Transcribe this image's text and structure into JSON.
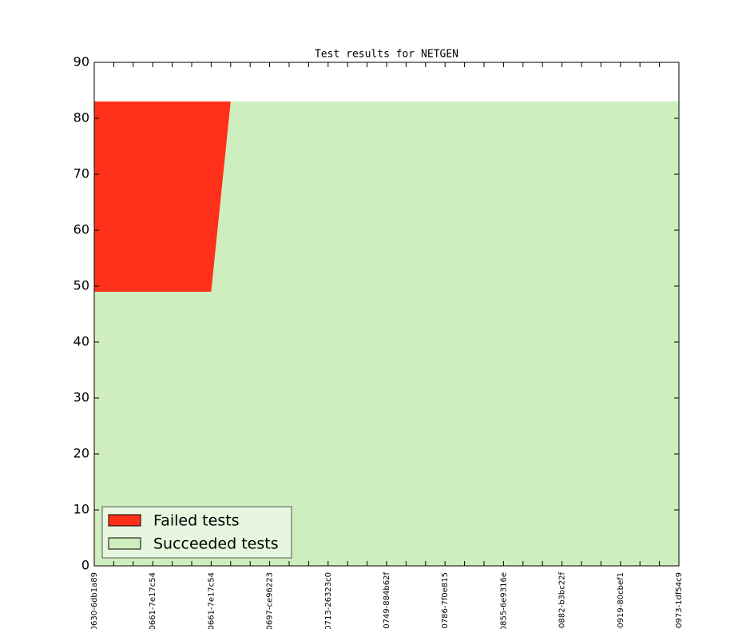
{
  "chart_data": {
    "type": "stacked-area",
    "title": "Test results for NETGEN",
    "categories": [
      "0630-6db1a89",
      null,
      null,
      "0661-7e17c54",
      null,
      null,
      "0661-7e17c54",
      null,
      null,
      "0697-ce96223",
      null,
      null,
      "0713-26323c0",
      null,
      null,
      "0749-884b62f",
      null,
      null,
      "0786-7f0e815",
      null,
      null,
      "0855-6e9316e",
      null,
      null,
      "-0882-b3bc22f",
      null,
      null,
      "-0919-80cbef1",
      null,
      null,
      "-0973-1df54c9"
    ],
    "series": [
      {
        "name": "Failed tests",
        "color": "#ff3019",
        "values": [
          34,
          34,
          34,
          34,
          34,
          34,
          34,
          0,
          0,
          0,
          0,
          0,
          0,
          0,
          0,
          0,
          0,
          0,
          0,
          0,
          0,
          0,
          0,
          0,
          0,
          0,
          0,
          0,
          0,
          0,
          0
        ]
      },
      {
        "name": "Succeeded tests",
        "color": "#cfeebf",
        "values": [
          49,
          49,
          49,
          49,
          49,
          49,
          49,
          83,
          83,
          83,
          83,
          83,
          83,
          83,
          83,
          83,
          83,
          83,
          83,
          83,
          83,
          83,
          83,
          83,
          83,
          83,
          83,
          83,
          83,
          83,
          83
        ]
      }
    ],
    "ylim": [
      0,
      90
    ],
    "yticks": [
      0,
      10,
      20,
      30,
      40,
      50,
      60,
      70,
      80,
      90
    ],
    "legend": "lower left"
  }
}
